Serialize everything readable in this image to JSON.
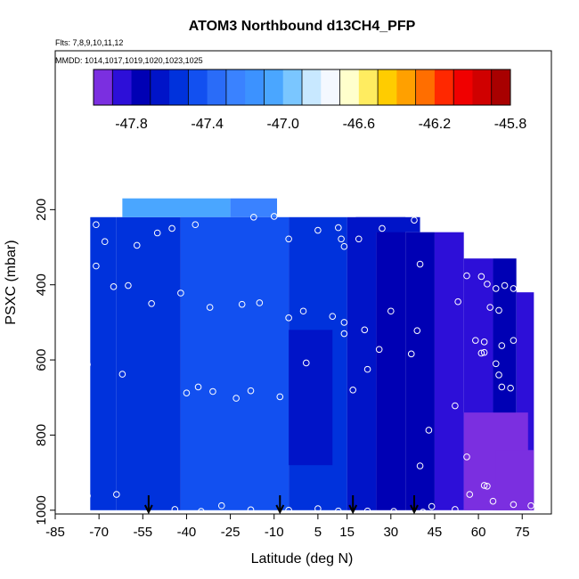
{
  "chart_data": {
    "type": "heatmap",
    "title": "ATOM3 Northbound d13CH4_PFP",
    "subtitle_lines": [
      "Flts: 7,8,9,10,11,12",
      "MMDD: 1014,1017,1019,1020,1023,1025"
    ],
    "xlabel": "Latitude (deg N)",
    "ylabel": "PSXC (mbar)",
    "xlim": [
      -85,
      85
    ],
    "ylim": [
      1010,
      0
    ],
    "x_ticks": [
      -85,
      -70,
      -55,
      -40,
      -25,
      -10,
      5,
      15,
      30,
      45,
      60,
      75
    ],
    "y_ticks": [
      200,
      400,
      600,
      800,
      1000
    ],
    "colorbar": {
      "range": [
        -48.0,
        -45.8
      ],
      "tick_values": [
        -47.8,
        -47.4,
        -47.0,
        -46.6,
        -46.2,
        -45.8
      ],
      "tick_labels": [
        "-47.8",
        "-47.4",
        "-47.0",
        "-46.6",
        "-46.2",
        "-45.8"
      ],
      "colors": [
        "#7b2fe0",
        "#2d0fd8",
        "#0000b4",
        "#0014c8",
        "#0032dc",
        "#1250f0",
        "#2a6cf8",
        "#3a82ff",
        "#3c92ff",
        "#4aa6ff",
        "#7ac6ff",
        "#c8e8ff",
        "#f4f8ff",
        "#ffffcc",
        "#ffec60",
        "#ffcc00",
        "#ffa000",
        "#ff6e00",
        "#ff2800",
        "#f00000",
        "#d00000",
        "#a80000"
      ]
    },
    "arrows_lat": [
      -53,
      -8,
      17,
      38
    ],
    "columns": [
      {
        "x": [
          -73,
          -64
        ],
        "p": [
          220,
          1000
        ],
        "v": -47.55
      },
      {
        "x": [
          -64,
          -42
        ],
        "p": [
          220,
          1000
        ],
        "v": -47.5
      },
      {
        "x": [
          -62,
          -25
        ],
        "p": [
          170,
          220
        ],
        "v": -47.05
      },
      {
        "x": [
          -25,
          -9
        ],
        "p": [
          170,
          220
        ],
        "v": -47.25
      },
      {
        "x": [
          -42,
          -5
        ],
        "p": [
          220,
          1000
        ],
        "v": -47.45
      },
      {
        "x": [
          -5,
          15
        ],
        "p": [
          220,
          1000
        ],
        "v": -47.5
      },
      {
        "x": [
          15,
          25
        ],
        "p": [
          220,
          1000
        ],
        "v": -47.6
      },
      {
        "x": [
          25,
          35
        ],
        "p": [
          220,
          1000
        ],
        "v": -47.7
      },
      {
        "x": [
          35,
          45
        ],
        "p": [
          260,
          1000
        ],
        "v": -47.8
      },
      {
        "x": [
          45,
          55
        ],
        "p": [
          260,
          1000
        ],
        "v": -47.85
      },
      {
        "x": [
          55,
          65
        ],
        "p": [
          330,
          1000
        ],
        "v": -47.85
      },
      {
        "x": [
          65,
          73
        ],
        "p": [
          330,
          1000
        ],
        "v": -47.8
      },
      {
        "x": [
          73,
          79
        ],
        "p": [
          420,
          1000
        ],
        "v": -47.88
      }
    ],
    "patches": [
      {
        "x": [
          55,
          77
        ],
        "p": [
          740,
          1000
        ],
        "v": -47.95
      },
      {
        "x": [
          66,
          79
        ],
        "p": [
          840,
          1000
        ],
        "v": -48.0
      },
      {
        "x": [
          -5,
          10
        ],
        "p": [
          520,
          880
        ],
        "v": -47.65
      },
      {
        "x": [
          18,
          40
        ],
        "p": [
          220,
          260
        ],
        "v": -47.65
      }
    ],
    "points": [
      [
        -71,
        240
      ],
      [
        -68,
        285
      ],
      [
        -57,
        295
      ],
      [
        -50,
        262
      ],
      [
        -45,
        250
      ],
      [
        -37,
        240
      ],
      [
        -17,
        220
      ],
      [
        -10,
        218
      ],
      [
        -2,
        198
      ],
      [
        12,
        248
      ],
      [
        27,
        250
      ],
      [
        38,
        228
      ],
      [
        -71,
        350
      ],
      [
        -65,
        405
      ],
      [
        -60,
        402
      ],
      [
        -42,
        422
      ],
      [
        -52,
        450
      ],
      [
        -32,
        460
      ],
      [
        -21,
        452
      ],
      [
        -15,
        448
      ],
      [
        -5,
        488
      ],
      [
        0,
        470
      ],
      [
        10,
        484
      ],
      [
        14,
        500
      ],
      [
        21,
        520
      ],
      [
        30,
        470
      ],
      [
        39,
        522
      ],
      [
        53,
        445
      ],
      [
        -5,
        278
      ],
      [
        5,
        255
      ],
      [
        13,
        278
      ],
      [
        14,
        298
      ],
      [
        19,
        278
      ],
      [
        40,
        345
      ],
      [
        56,
        376
      ],
      [
        61,
        378
      ],
      [
        63,
        398
      ],
      [
        66,
        410
      ],
      [
        69,
        402
      ],
      [
        72,
        410
      ],
      [
        64,
        460
      ],
      [
        67,
        468
      ],
      [
        -74,
        612
      ],
      [
        -62,
        638
      ],
      [
        -40,
        688
      ],
      [
        -36,
        672
      ],
      [
        -31,
        684
      ],
      [
        -23,
        702
      ],
      [
        -18,
        682
      ],
      [
        -8,
        698
      ],
      [
        1,
        608
      ],
      [
        14,
        530
      ],
      [
        22,
        625
      ],
      [
        17,
        680
      ],
      [
        26,
        572
      ],
      [
        37,
        584
      ],
      [
        62,
        580
      ],
      [
        59,
        548
      ],
      [
        62,
        552
      ],
      [
        68,
        562
      ],
      [
        72,
        548
      ],
      [
        61,
        582
      ],
      [
        66,
        610
      ],
      [
        67,
        640
      ],
      [
        68,
        672
      ],
      [
        71,
        675
      ],
      [
        52,
        722
      ],
      [
        43,
        787
      ],
      [
        40,
        882
      ],
      [
        56,
        858
      ],
      [
        63,
        936
      ],
      [
        -74,
        962
      ],
      [
        -64,
        958
      ],
      [
        -44,
        998
      ],
      [
        -35,
        1003
      ],
      [
        -28,
        988
      ],
      [
        -18,
        999
      ],
      [
        -5,
        1000
      ],
      [
        5,
        996
      ],
      [
        12,
        1002
      ],
      [
        22,
        1002
      ],
      [
        31,
        1003
      ],
      [
        44,
        990
      ],
      [
        52,
        998
      ],
      [
        57,
        958
      ],
      [
        62,
        934
      ],
      [
        72,
        985
      ],
      [
        78,
        988
      ],
      [
        65,
        976
      ],
      [
        41,
        1005
      ]
    ]
  }
}
